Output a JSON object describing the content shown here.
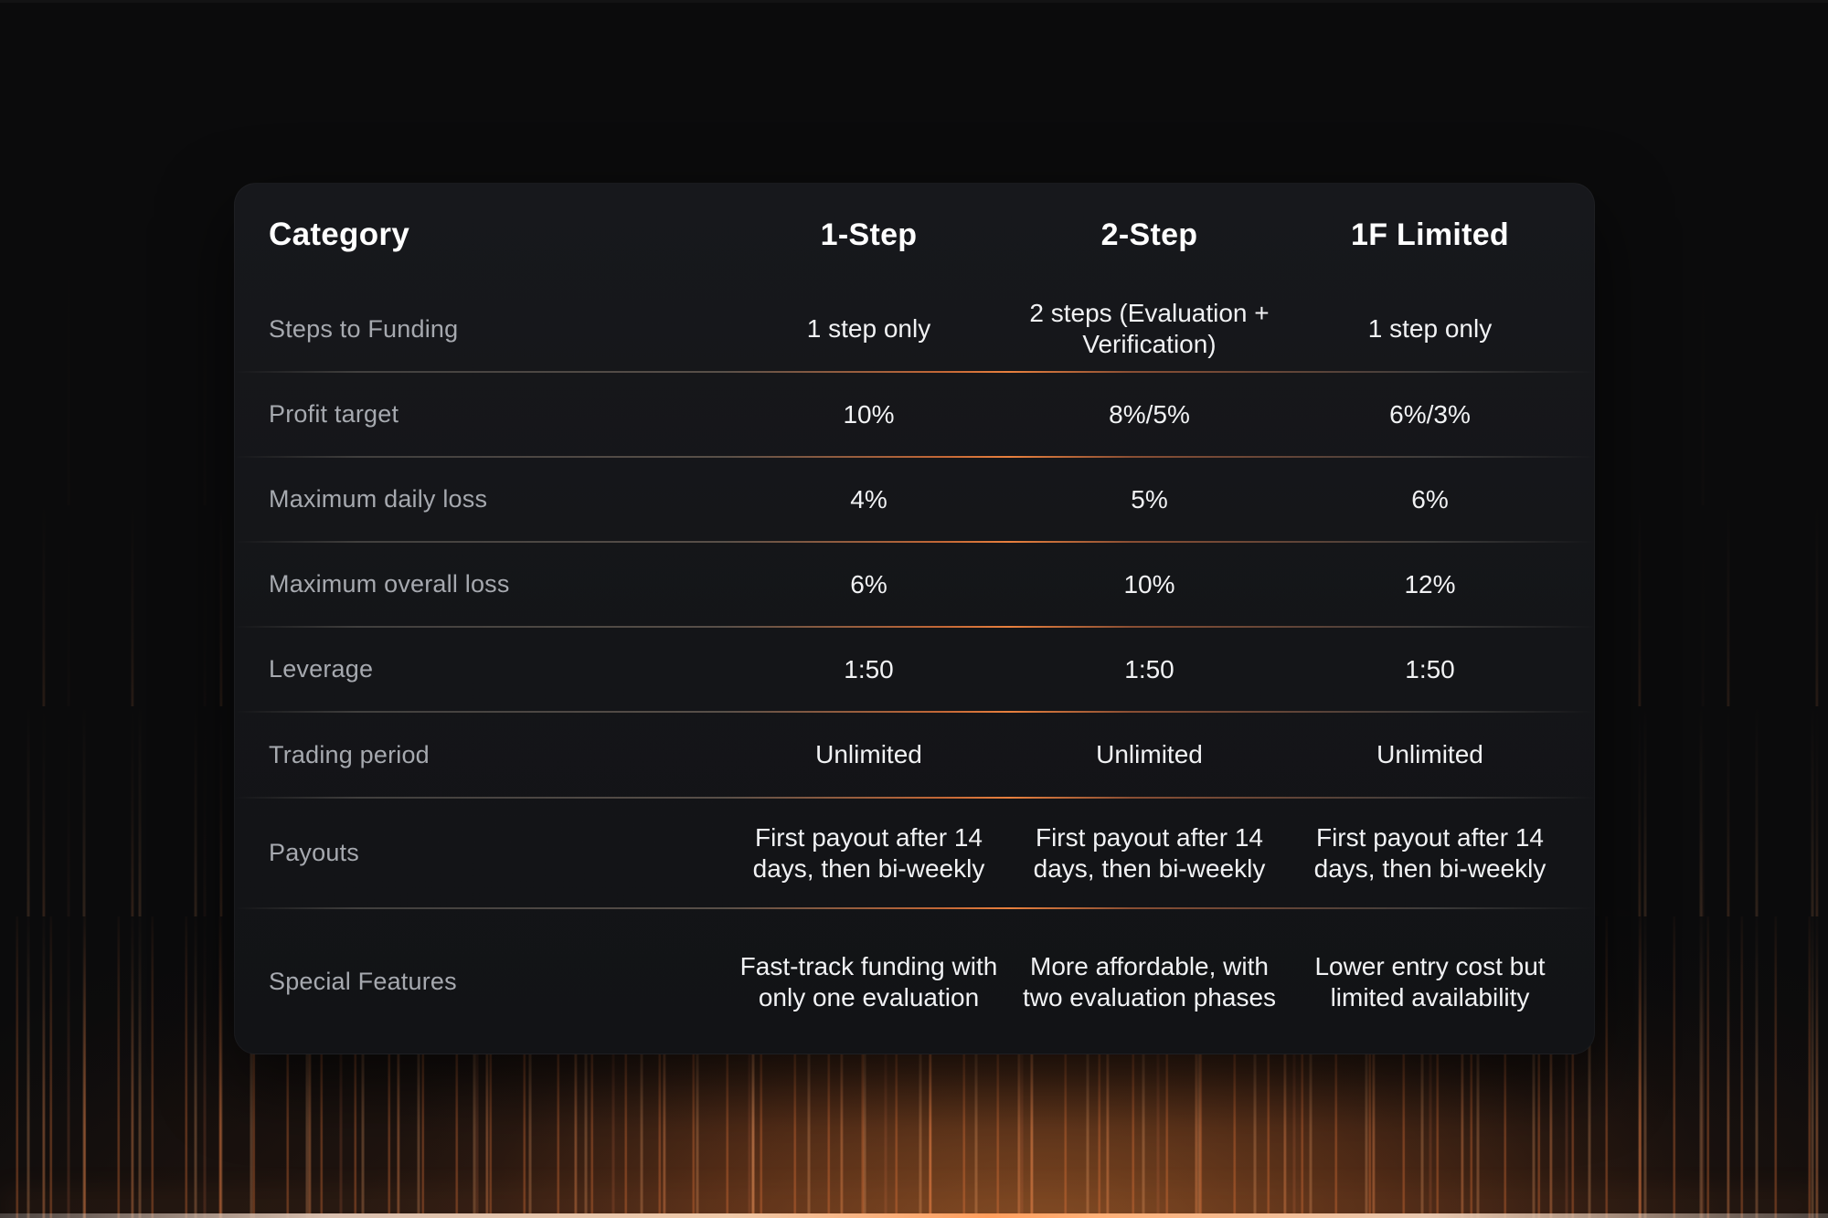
{
  "table": {
    "header": {
      "category": "Category",
      "columns": [
        "1-Step",
        "2-Step",
        "1F Limited"
      ]
    },
    "rows": [
      {
        "label": "Steps to Funding",
        "values": [
          "1 step only",
          "2 steps (Evaluation + Verification)",
          "1 step only"
        ]
      },
      {
        "label": "Profit target",
        "values": [
          "10%",
          "8%/5%",
          "6%/3%"
        ]
      },
      {
        "label": "Maximum daily loss",
        "values": [
          "4%",
          "5%",
          "6%"
        ]
      },
      {
        "label": "Maximum overall loss",
        "values": [
          "6%",
          "10%",
          "12%"
        ]
      },
      {
        "label": "Leverage",
        "values": [
          "1:50",
          "1:50",
          "1:50"
        ]
      },
      {
        "label": "Trading period",
        "values": [
          "Unlimited",
          "Unlimited",
          "Unlimited"
        ]
      },
      {
        "label": "Payouts",
        "values": [
          "First payout after 14 days, then bi-weekly",
          "First payout after 14 days, then bi-weekly",
          "First payout after 14 days, then bi-weekly"
        ]
      },
      {
        "label": "Special Features",
        "values": [
          "Fast-track funding with only one evaluation",
          "More affordable, with two evaluation phases",
          "Lower entry cost but limited availability"
        ]
      }
    ]
  },
  "chart_data": {
    "type": "table",
    "title": "",
    "columns": [
      "Category",
      "1-Step",
      "2-Step",
      "1F Limited"
    ],
    "rows": [
      [
        "Steps to Funding",
        "1 step only",
        "2 steps (Evaluation + Verification)",
        "1 step only"
      ],
      [
        "Profit target",
        "10%",
        "8%/5%",
        "6%/3%"
      ],
      [
        "Maximum daily loss",
        "4%",
        "5%",
        "6%"
      ],
      [
        "Maximum overall loss",
        "6%",
        "10%",
        "12%"
      ],
      [
        "Leverage",
        "1:50",
        "1:50",
        "1:50"
      ],
      [
        "Trading period",
        "Unlimited",
        "Unlimited",
        "Unlimited"
      ],
      [
        "Payouts",
        "First payout after 14 days, then bi-weekly",
        "First payout after 14 days, then bi-weekly",
        "First payout after 14 days, then bi-weekly"
      ],
      [
        "Special Features",
        "Fast-track funding with only one evaluation",
        "More affordable, with two evaluation phases",
        "Lower entry cost but limited availability"
      ]
    ]
  },
  "colors": {
    "page_background": "#0b0b0c",
    "card_background": "#15161a",
    "header_text": "#ffffff",
    "label_text": "#a6a9af",
    "value_text": "#f1f2f4",
    "accent_orange": "#e8803e"
  }
}
